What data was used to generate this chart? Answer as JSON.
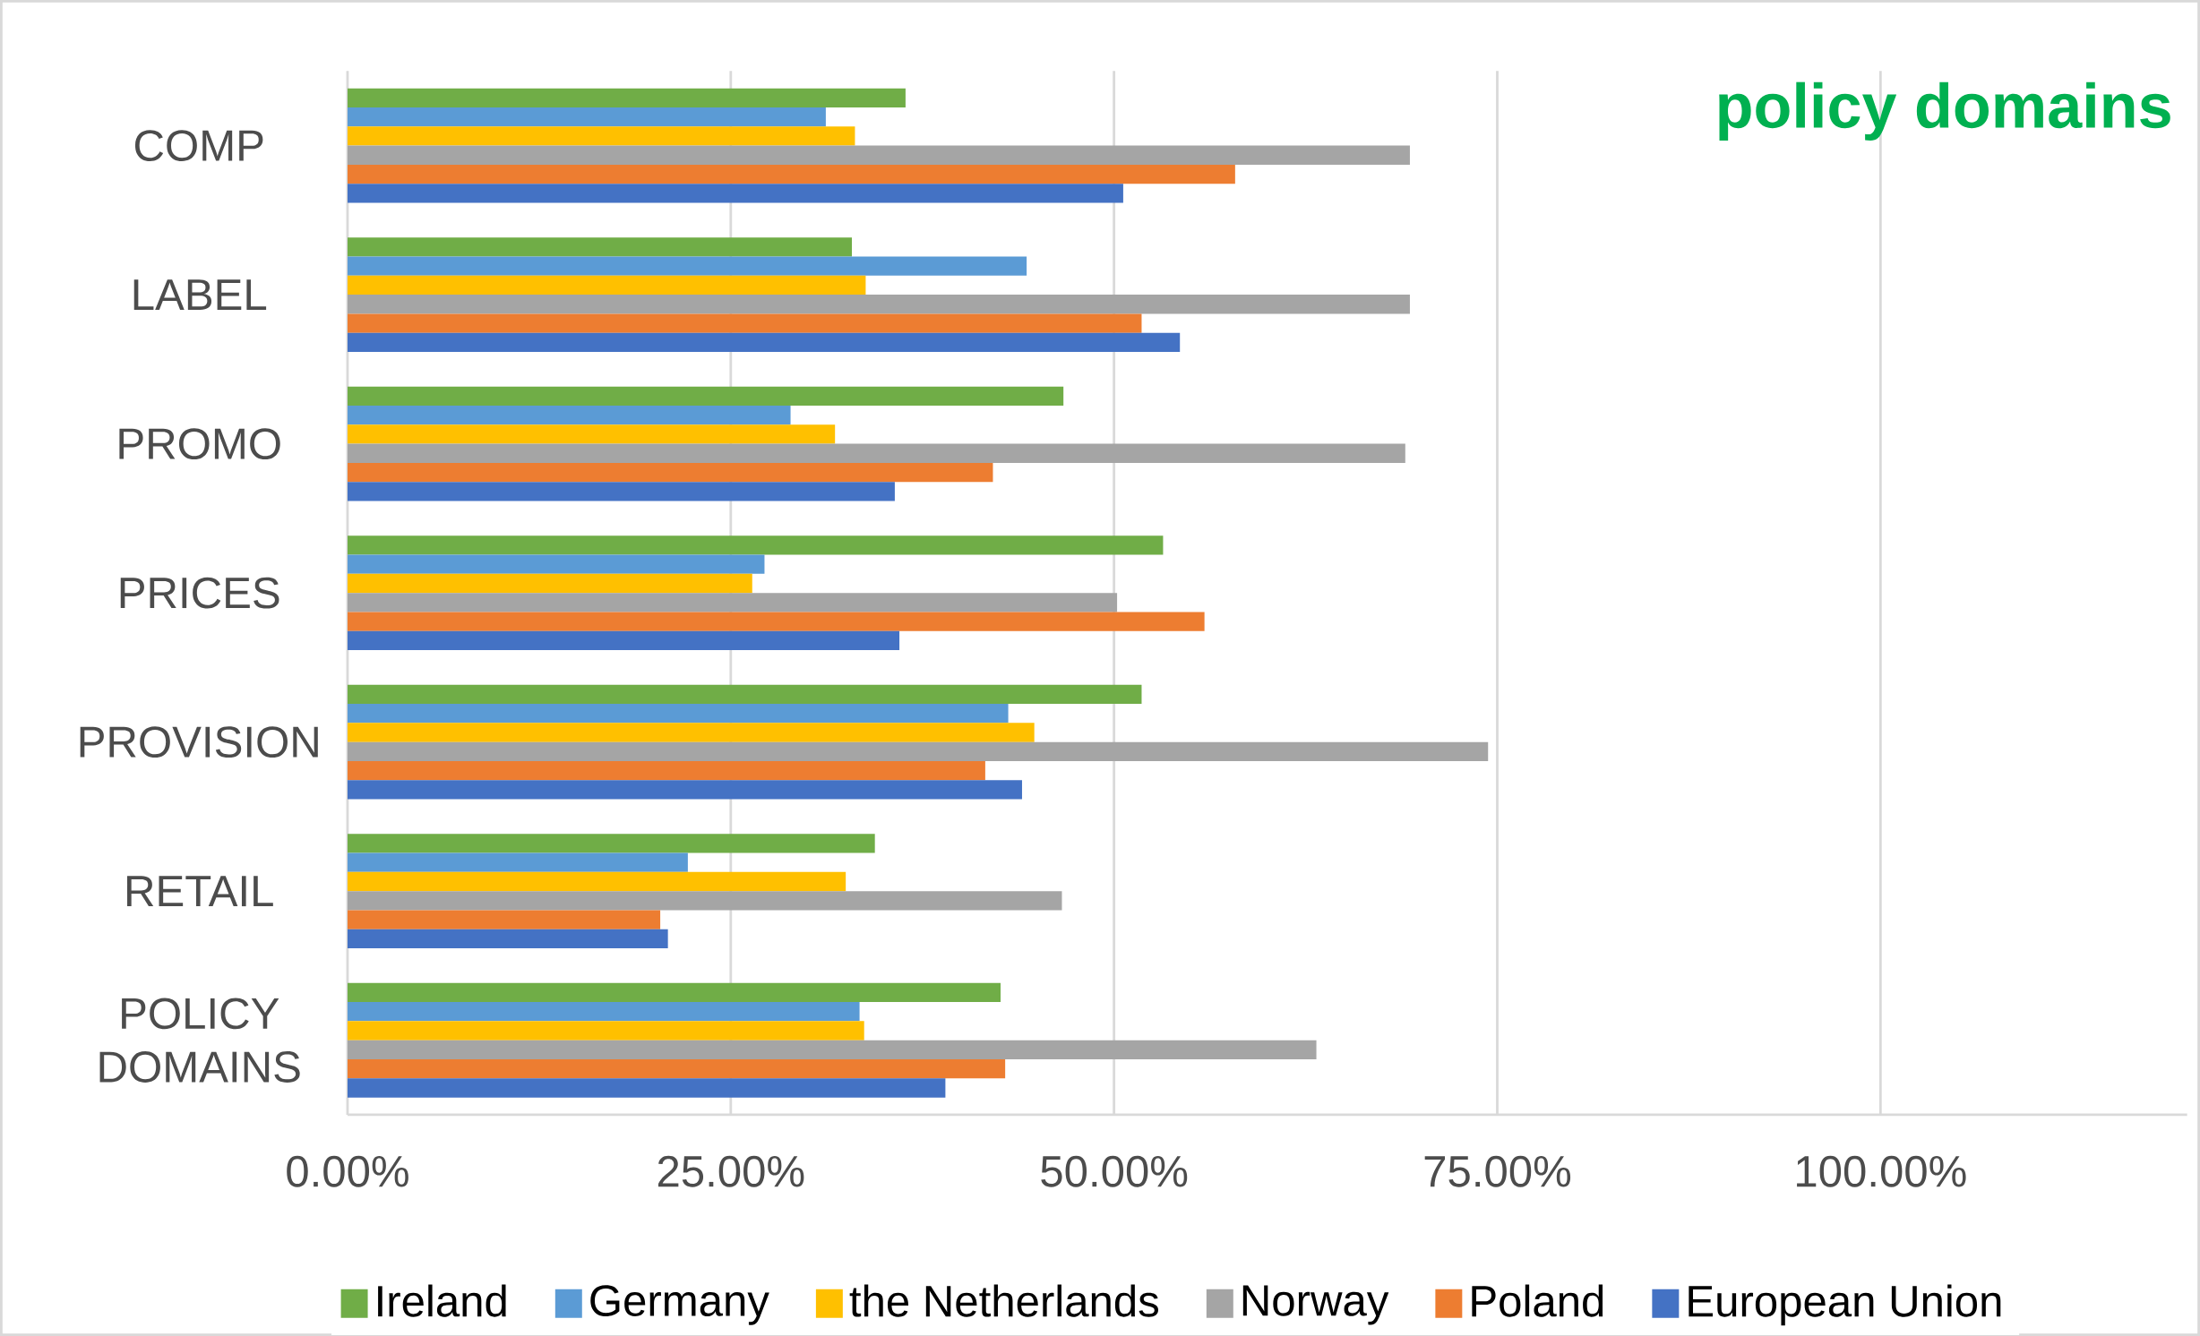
{
  "chart_data": {
    "type": "bar",
    "orientation": "horizontal",
    "title": "policy domains",
    "categories": [
      "COMP",
      "LABEL",
      "PROMO",
      "PRICES",
      "PROVISION",
      "RETAIL",
      "POLICY DOMAINS"
    ],
    "series": [
      {
        "name": "Ireland",
        "color": "#70ad47",
        "values": [
          0.364,
          0.329,
          0.467,
          0.532,
          0.518,
          0.344,
          0.426
        ]
      },
      {
        "name": "Germany",
        "color": "#5b9bd5",
        "values": [
          0.312,
          0.443,
          0.289,
          0.272,
          0.431,
          0.222,
          0.334
        ]
      },
      {
        "name": "the Netherlands",
        "color": "#ffc000",
        "values": [
          0.331,
          0.338,
          0.318,
          0.264,
          0.448,
          0.325,
          0.337
        ]
      },
      {
        "name": "Norway",
        "color": "#a5a5a5",
        "values": [
          0.693,
          0.693,
          0.69,
          0.502,
          0.744,
          0.466,
          0.632
        ]
      },
      {
        "name": "Poland",
        "color": "#ed7d31",
        "values": [
          0.579,
          0.518,
          0.421,
          0.559,
          0.416,
          0.204,
          0.429
        ]
      },
      {
        "name": "European Union",
        "color": "#4472c4",
        "values": [
          0.506,
          0.543,
          0.357,
          0.36,
          0.44,
          0.209,
          0.39
        ]
      }
    ],
    "xlim": [
      0,
      1.2
    ],
    "xticks": [
      {
        "value": 0,
        "label": "0.00%"
      },
      {
        "value": 0.25,
        "label": "25.00%"
      },
      {
        "value": 0.5,
        "label": "50.00%"
      },
      {
        "value": 0.75,
        "label": "75.00%"
      },
      {
        "value": 1.0,
        "label": "100.00%"
      }
    ],
    "grid": "x",
    "legend": "bottom"
  }
}
